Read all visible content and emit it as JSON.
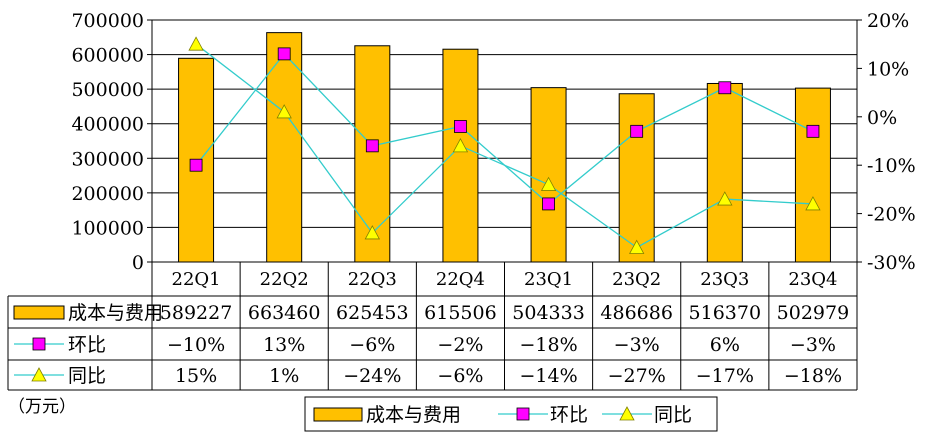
{
  "chart_data": {
    "type": "bar+line",
    "categories": [
      "22Q1",
      "22Q2",
      "22Q3",
      "22Q4",
      "23Q1",
      "23Q2",
      "23Q3",
      "23Q4"
    ],
    "unit_note": "（万元）",
    "y_left": {
      "min": 0,
      "max": 700000,
      "ticks": [
        "0",
        "100000",
        "200000",
        "300000",
        "400000",
        "500000",
        "600000",
        "700000"
      ]
    },
    "y_right": {
      "min": -30,
      "max": 20,
      "ticks": [
        "-30%",
        "-20%",
        "-10%",
        "0%",
        "10%",
        "20%"
      ]
    },
    "series": [
      {
        "name": "成本与费用",
        "type": "bar",
        "axis": "left",
        "color": "#FFC000",
        "values": [
          589227,
          663460,
          625453,
          615506,
          504333,
          486686,
          516370,
          502979
        ],
        "labels": [
          "589227",
          "663460",
          "625453",
          "615506",
          "504333",
          "486686",
          "516370",
          "502979"
        ]
      },
      {
        "name": "环比",
        "type": "line",
        "axis": "right",
        "color": "#33CCCC",
        "marker": "square",
        "marker_color": "#FF00FF",
        "values": [
          -10,
          13,
          -6,
          -2,
          -18,
          -3,
          6,
          -3
        ],
        "labels": [
          "−10%",
          "13%",
          "−6%",
          "−2%",
          "−18%",
          "−3%",
          "6%",
          "−3%"
        ]
      },
      {
        "name": "同比",
        "type": "line",
        "axis": "right",
        "color": "#33CCCC",
        "marker": "triangle",
        "marker_color": "#FFFF00",
        "values": [
          15,
          1,
          -24,
          -6,
          -14,
          -27,
          -17,
          -18
        ],
        "labels": [
          "15%",
          "1%",
          "−24%",
          "−6%",
          "−14%",
          "−27%",
          "−17%",
          "−18%"
        ]
      }
    ],
    "legend": {
      "placement": "bottom",
      "entries": [
        "成本与费用",
        "环比",
        "同比"
      ]
    },
    "grid": true
  }
}
